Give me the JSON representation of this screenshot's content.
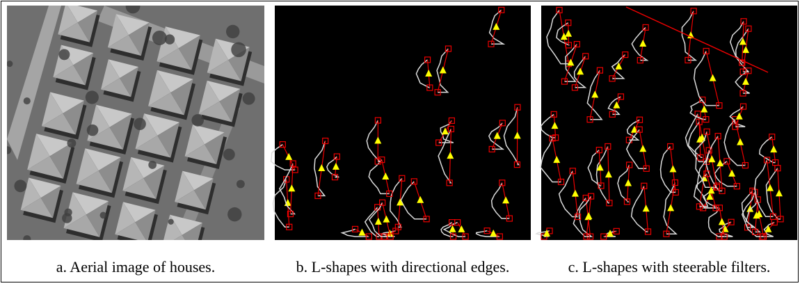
{
  "figure": {
    "panels": [
      {
        "caption": "a. Aerial image of houses."
      },
      {
        "caption": "b. L-shapes with directional edges."
      },
      {
        "caption": "c. L-shapes with steerable filters."
      }
    ]
  }
}
